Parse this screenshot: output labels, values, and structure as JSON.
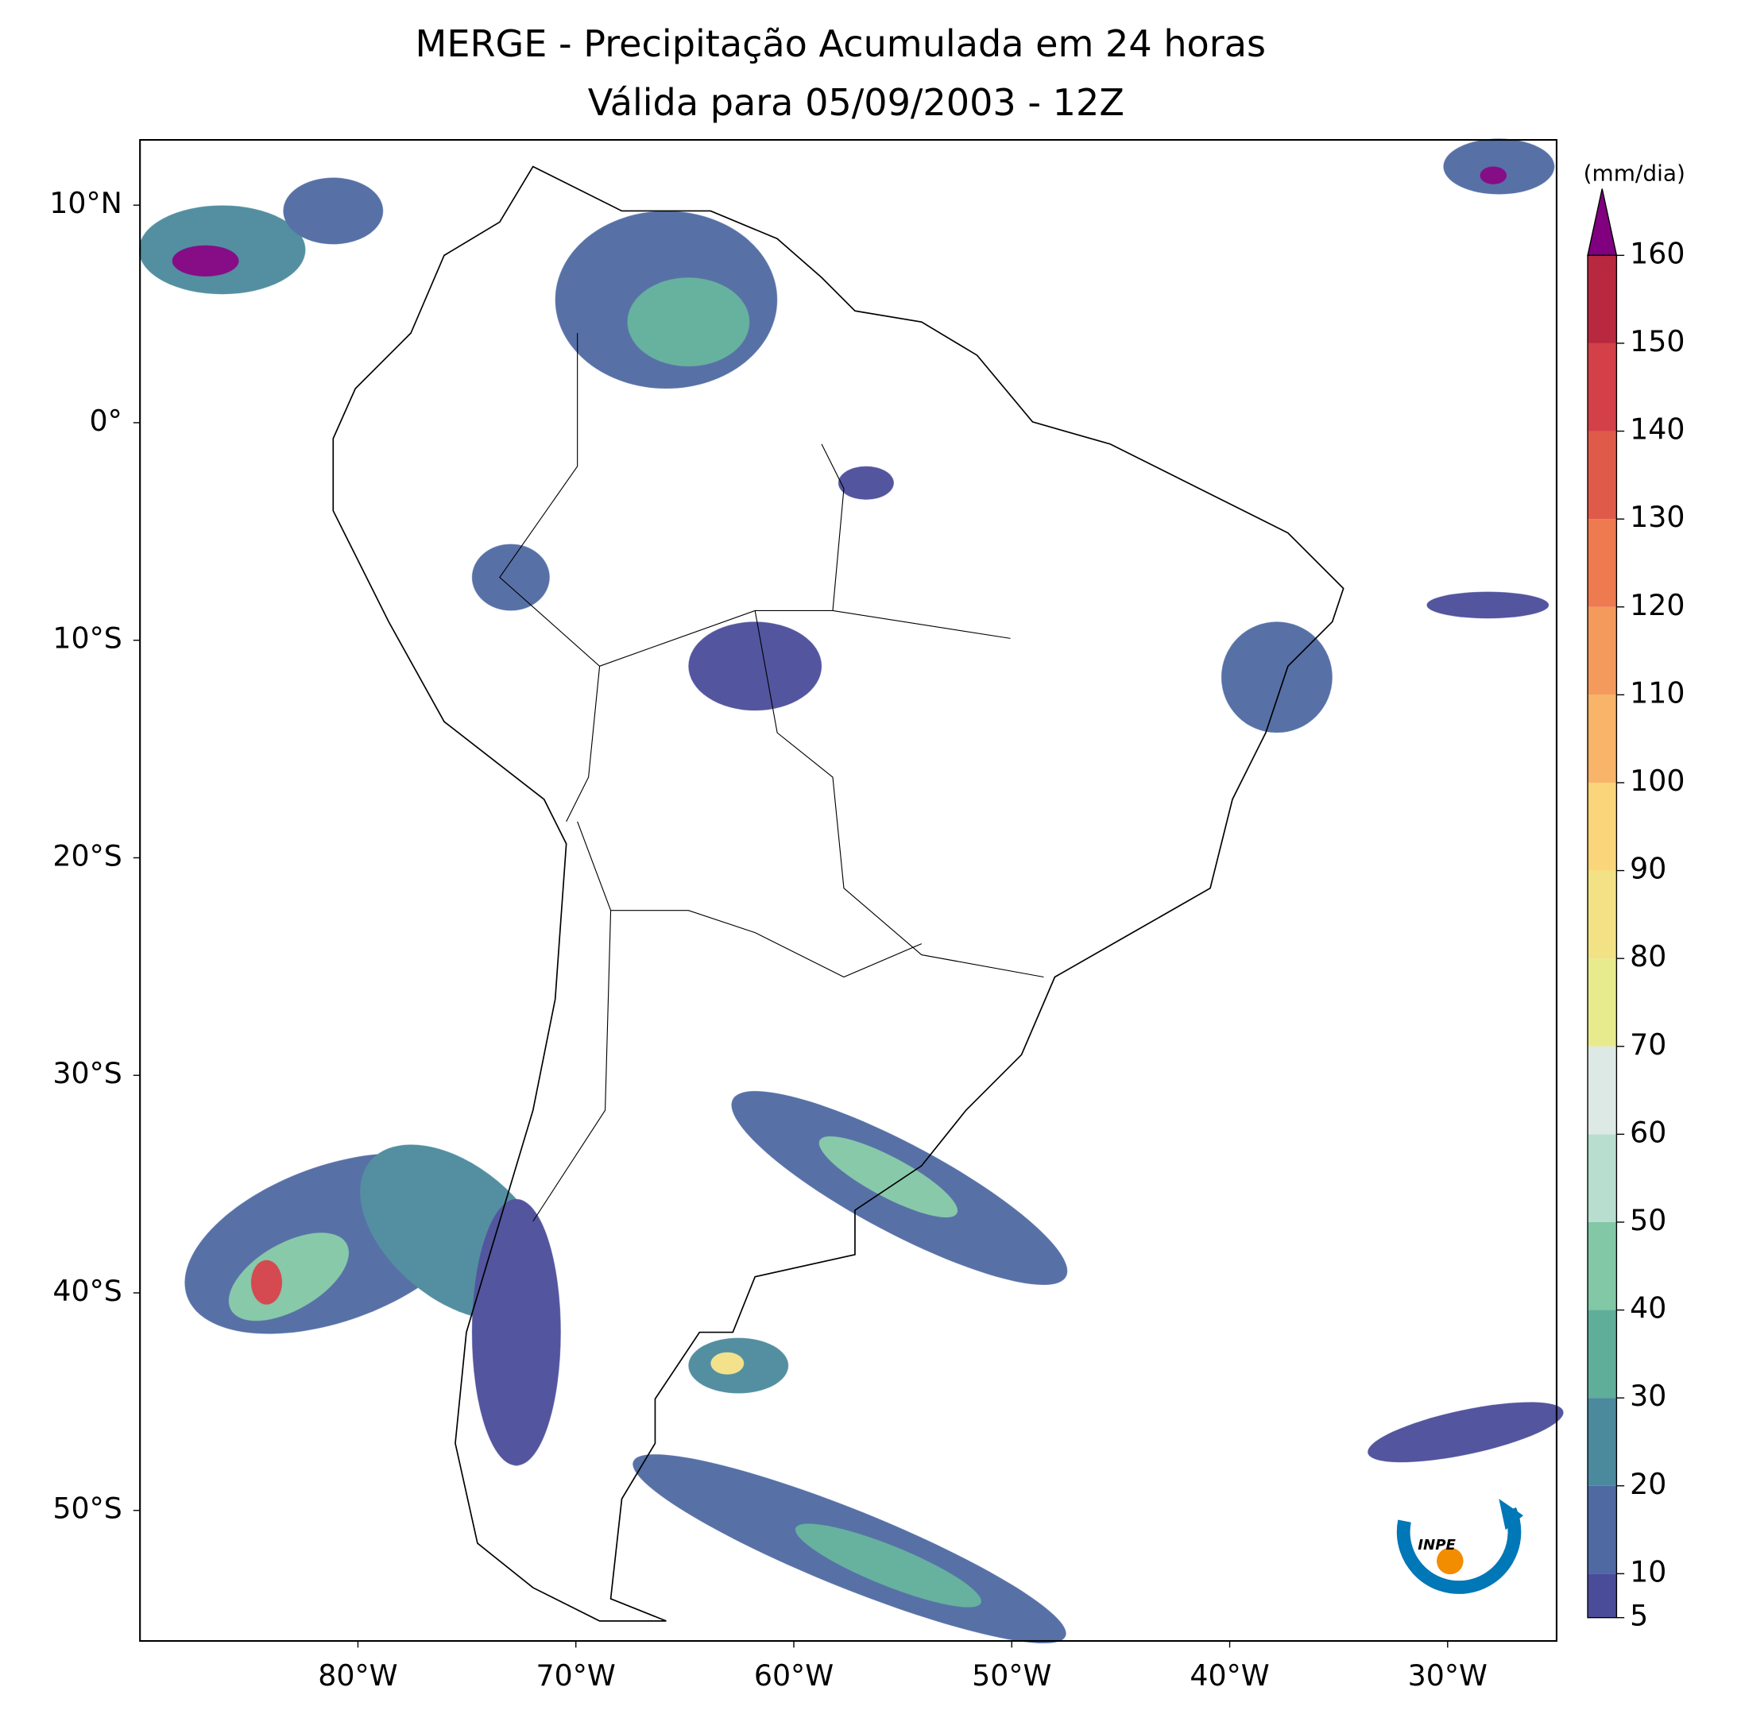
{
  "chart_data": {
    "type": "map",
    "title": "MERGE - Precipitação Acumulada em 24 horas",
    "subtitle": "Válida para 05/09/2003 - 12Z",
    "xlim": [
      -90,
      -25
    ],
    "ylim": [
      -56,
      13
    ],
    "xticks": [
      {
        "value": -80,
        "label": "80°W"
      },
      {
        "value": -70,
        "label": "70°W"
      },
      {
        "value": -60,
        "label": "60°W"
      },
      {
        "value": -50,
        "label": "50°W"
      },
      {
        "value": -40,
        "label": "40°W"
      },
      {
        "value": -30,
        "label": "30°W"
      }
    ],
    "yticks": [
      {
        "value": 10,
        "label": "10°N"
      },
      {
        "value": 0,
        "label": "0°"
      },
      {
        "value": -10,
        "label": "10°S"
      },
      {
        "value": -20,
        "label": "20°S"
      },
      {
        "value": -30,
        "label": "30°S"
      },
      {
        "value": -40,
        "label": "40°S"
      },
      {
        "value": -50,
        "label": "50°S"
      }
    ],
    "colorbar": {
      "label": "(mm/dia)",
      "lim": [
        5,
        160
      ],
      "ticks": [
        5,
        10,
        20,
        30,
        40,
        50,
        60,
        70,
        80,
        90,
        100,
        110,
        120,
        130,
        140,
        150,
        160
      ],
      "colors": [
        "#4a4c9a",
        "#4f6aa3",
        "#4a8a9c",
        "#5fae9a",
        "#82c7a6",
        "#b8ded0",
        "#dde9e4",
        "#e8ea8e",
        "#f3e185",
        "#fbd57a",
        "#f8b468",
        "#f49a5c",
        "#ee7a4f",
        "#e05a4a",
        "#d34048",
        "#b8283f"
      ],
      "extend_color": "#800080"
    }
  }
}
